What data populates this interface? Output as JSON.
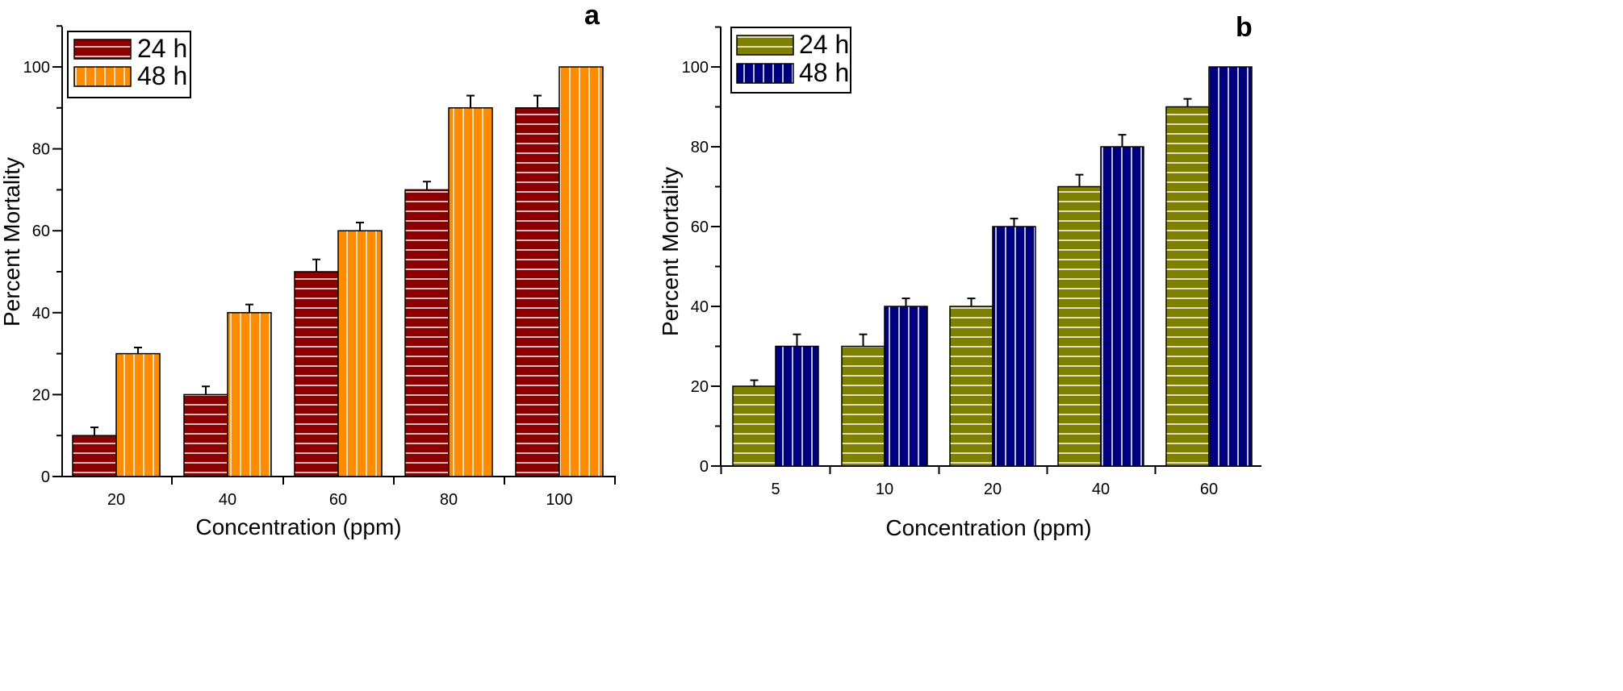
{
  "chart_data": [
    {
      "type": "bar",
      "panel_label": "a",
      "xlabel": "Concentration (ppm)",
      "ylabel": "Percent Mortality",
      "ylim": [
        0,
        110
      ],
      "yticks": [
        0,
        20,
        40,
        60,
        80,
        100
      ],
      "categories": [
        "20",
        "40",
        "60",
        "80",
        "100"
      ],
      "legend_position": "top-left",
      "series": [
        {
          "name": "24 h",
          "color": "#8b0000",
          "pattern": "horizontal",
          "values": [
            10,
            20,
            50,
            70,
            90
          ],
          "errors": [
            2,
            2,
            3,
            2,
            3
          ]
        },
        {
          "name": "48 h",
          "color": "#ff8c00",
          "pattern": "vertical",
          "values": [
            30,
            40,
            60,
            90,
            100
          ],
          "errors": [
            1.5,
            2,
            2,
            3,
            0
          ]
        }
      ]
    },
    {
      "type": "bar",
      "panel_label": "b",
      "xlabel": "Concentration (ppm)",
      "ylabel": "Percent Mortality",
      "ylim": [
        0,
        110
      ],
      "yticks": [
        0,
        20,
        40,
        60,
        80,
        100
      ],
      "categories": [
        "5",
        "10",
        "20",
        "40",
        "60"
      ],
      "legend_position": "top-left",
      "series": [
        {
          "name": "24 h",
          "color": "#808000",
          "pattern": "horizontal",
          "values": [
            20,
            30,
            40,
            70,
            90
          ],
          "errors": [
            1.5,
            3,
            2,
            3,
            2
          ]
        },
        {
          "name": "48 h",
          "color": "#00007f",
          "pattern": "vertical",
          "values": [
            30,
            40,
            60,
            80,
            100
          ],
          "errors": [
            3,
            2,
            2,
            3,
            0
          ]
        }
      ]
    }
  ]
}
